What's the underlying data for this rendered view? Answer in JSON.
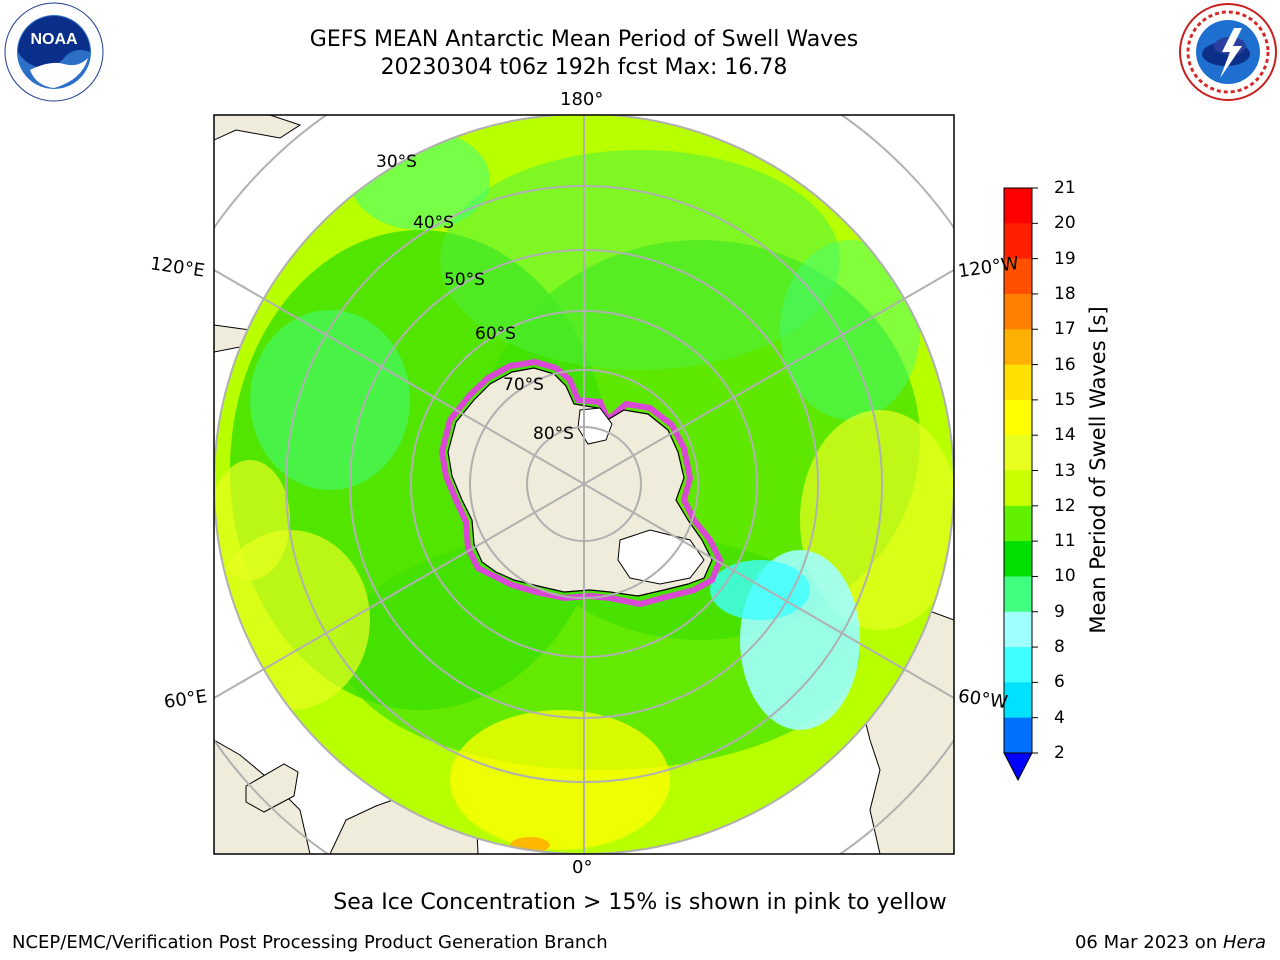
{
  "header": {
    "title_line1": "GEFS MEAN Antarctic Mean Period of Swell Waves",
    "title_line2": "20230304 t06z 192h fcst   Max: 16.78"
  },
  "logos": {
    "left": "noaa-logo",
    "right": "national-weather-service-logo",
    "left_text": "NOAA",
    "right_text": "NATIONAL WEATHER SERVICE"
  },
  "map": {
    "projection": "south-polar-stereographic",
    "longitude_labels": {
      "top": "180°",
      "bottom": "0°",
      "upper_left": "120°E",
      "upper_right": "120°W",
      "lower_left": "60°E",
      "lower_right": "60°W"
    },
    "latitude_labels": [
      "30°S",
      "40°S",
      "50°S",
      "60°S",
      "70°S",
      "80°S"
    ],
    "colors": {
      "land": "#efecdb",
      "ice_free_land": "#ffffff",
      "sea_ice_edge": "#e040e0",
      "graticule": "#b0b0b0"
    }
  },
  "colorbar": {
    "label": "Mean Period of Swell Waves [s]",
    "ticks": [
      "2",
      "4",
      "6",
      "8",
      "9",
      "10",
      "11",
      "12",
      "13",
      "14",
      "15",
      "16",
      "17",
      "18",
      "19",
      "20",
      "21"
    ],
    "colors": [
      "#0000ff",
      "#0070ff",
      "#00e0ff",
      "#40ffff",
      "#a0ffff",
      "#40ff80",
      "#00e000",
      "#60f000",
      "#c8ff00",
      "#e8ff20",
      "#ffff00",
      "#ffe000",
      "#ffb000",
      "#ff8000",
      "#ff5000",
      "#ff2000",
      "#ff0000"
    ],
    "extend": "min"
  },
  "footer": {
    "note": "Sea Ice Concentration > 15% is shown in pink to yellow",
    "credit_left": "NCEP/EMC/Verification Post Processing Product Generation Branch",
    "credit_date": "06 Mar 2023 on ",
    "credit_machine": "Hera"
  }
}
